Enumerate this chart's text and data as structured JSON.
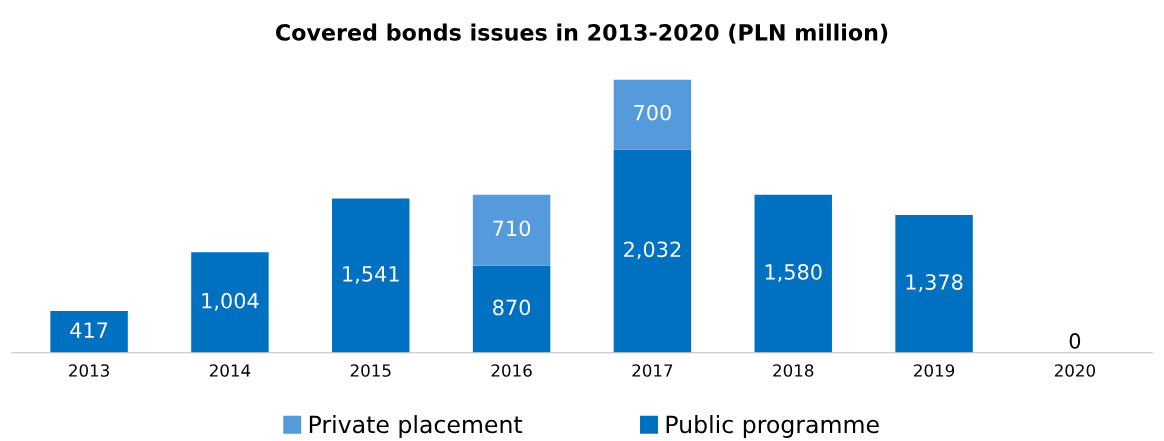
{
  "chart_data": {
    "type": "bar",
    "title": "Covered bonds issues in 2013-2020 (PLN million)",
    "categories": [
      "2013",
      "2014",
      "2015",
      "2016",
      "2017",
      "2018",
      "2019",
      "2020"
    ],
    "stacked": true,
    "legend": "bottom",
    "grid": false,
    "tick_labels": "x",
    "series": [
      {
        "name": "Public programme",
        "color": "#0070c0",
        "values": [
          417,
          1004,
          1541,
          870,
          2032,
          1580,
          1378,
          0
        ],
        "value_labels": [
          "417",
          "1,004",
          "1,541",
          "870",
          "2,032",
          "1,580",
          "1,378",
          "0"
        ]
      },
      {
        "name": "Private placement",
        "color": "#559bdb",
        "values": [
          null,
          null,
          null,
          710,
          700,
          null,
          null,
          null
        ],
        "value_labels": [
          null,
          null,
          null,
          "710",
          "700",
          null,
          null,
          null
        ]
      }
    ]
  }
}
